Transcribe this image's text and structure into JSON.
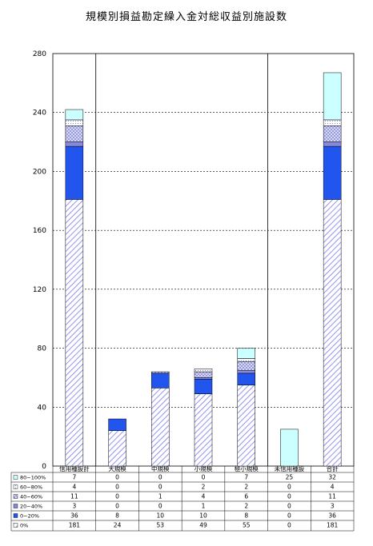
{
  "chart_data": {
    "type": "bar",
    "stacked": true,
    "title": "規模別損益勘定繰入金対総収益別施設数",
    "ylim": [
      0,
      280
    ],
    "yticks": [
      0,
      40,
      80,
      120,
      160,
      200,
      240,
      280
    ],
    "grid": true,
    "legend": "table-left",
    "categories": [
      "信用種設計",
      "大規模",
      "中規模",
      "小規模",
      "極小規模",
      "未信用種設",
      "合計"
    ],
    "series": [
      {
        "name": "0%",
        "values": [
          181,
          24,
          53,
          49,
          55,
          0,
          181
        ],
        "color": "#7777ee",
        "pattern": "hatch"
      },
      {
        "name": "0~20%",
        "values": [
          36,
          8,
          10,
          10,
          8,
          0,
          36
        ],
        "color": "#2255ee",
        "pattern": "solid"
      },
      {
        "name": "20~40%",
        "values": [
          3,
          0,
          0,
          1,
          2,
          0,
          3
        ],
        "color": "#8888dd",
        "pattern": "solid"
      },
      {
        "name": "40~60%",
        "values": [
          11,
          0,
          1,
          4,
          6,
          0,
          11
        ],
        "color": "#aab0ee",
        "pattern": "cross"
      },
      {
        "name": "60~80%",
        "values": [
          4,
          0,
          0,
          2,
          2,
          0,
          4
        ],
        "color": "#c8c8f0",
        "pattern": "dots"
      },
      {
        "name": "80~100%",
        "values": [
          7,
          0,
          0,
          0,
          7,
          25,
          32
        ],
        "color": "#ccffff",
        "pattern": "solid"
      }
    ]
  }
}
